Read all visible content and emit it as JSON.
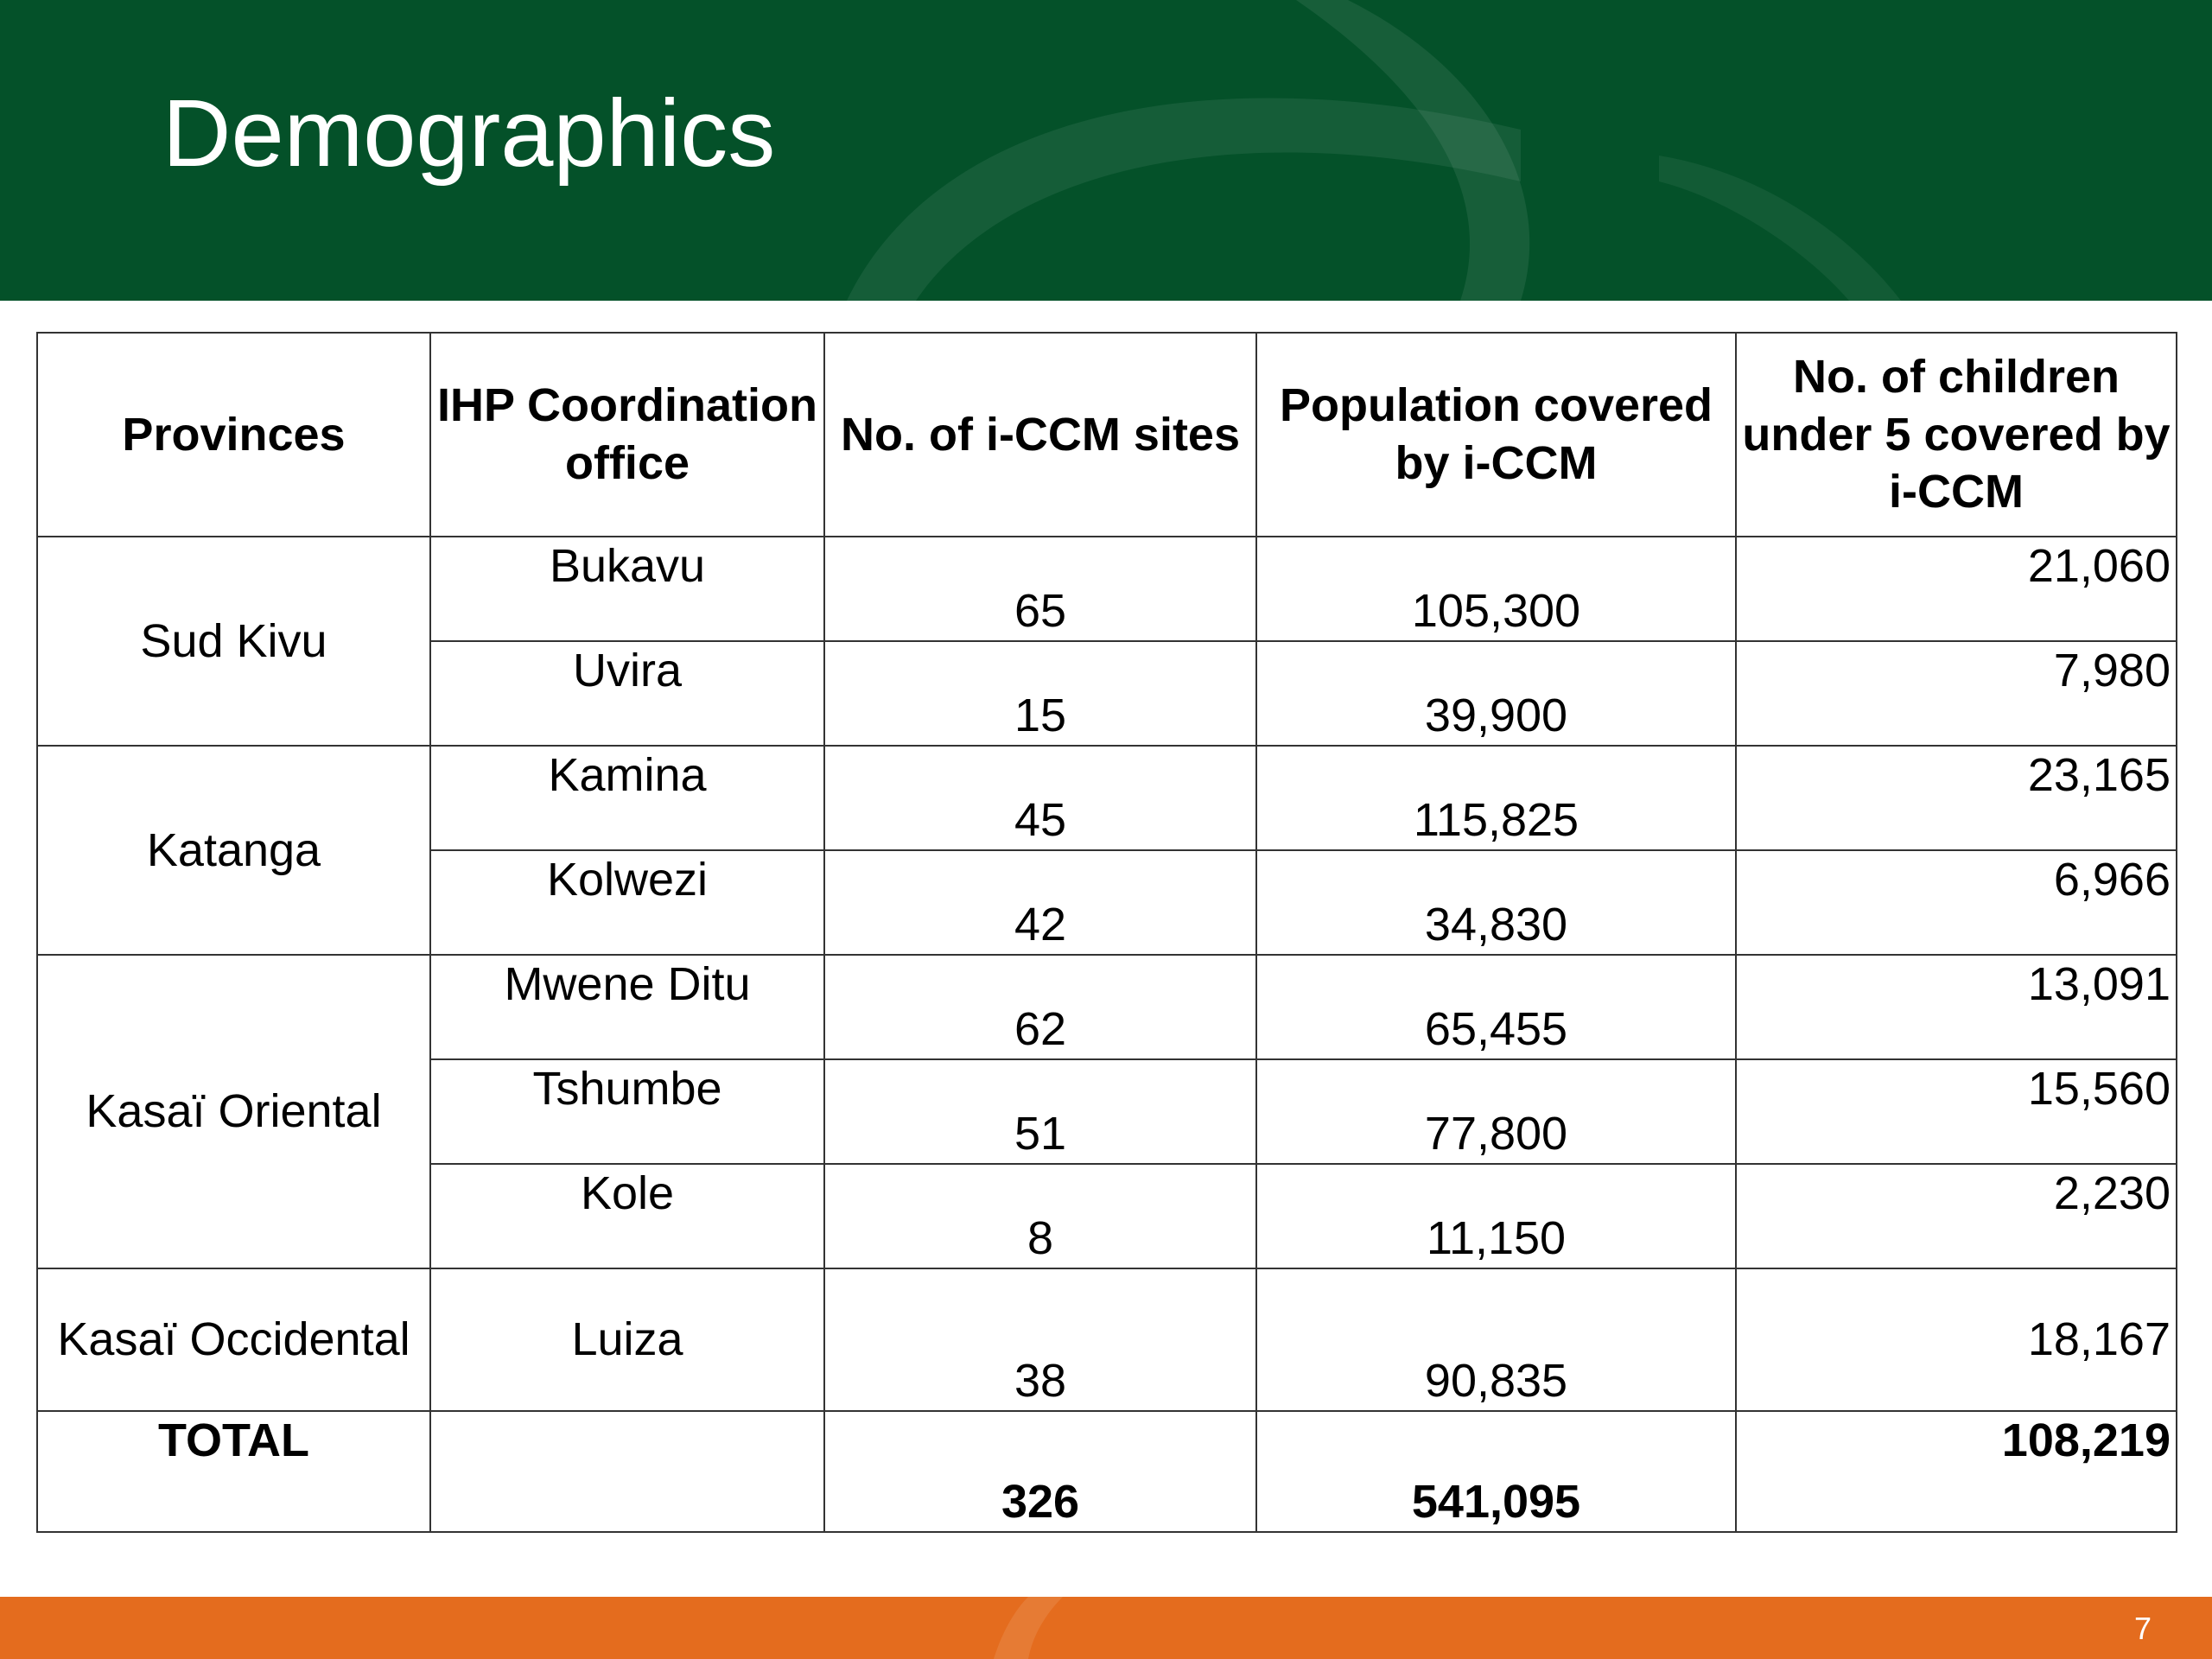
{
  "slide": {
    "title": "Demographics",
    "page_number": "7",
    "colors": {
      "header": "#045129",
      "footer": "#e46c1e",
      "text": "#000000"
    }
  },
  "table": {
    "headers": {
      "provinces": "Provinces",
      "office": "IHP Coordination office",
      "sites": "No. of i-CCM sites",
      "population": "Population covered by i-CCM",
      "children": "No. of children under 5 covered by i-CCM"
    },
    "groups": [
      {
        "province": "Sud Kivu",
        "rows": [
          {
            "office": "Bukavu",
            "sites": "65",
            "population": "105,300",
            "children": "21,060"
          },
          {
            "office": "Uvira",
            "sites": "15",
            "population": "39,900",
            "children": "7,980"
          }
        ]
      },
      {
        "province": "Katanga",
        "rows": [
          {
            "office": "Kamina",
            "sites": "45",
            "population": "115,825",
            "children": "23,165"
          },
          {
            "office": "Kolwezi",
            "sites": "42",
            "population": "34,830",
            "children": "6,966"
          }
        ]
      },
      {
        "province": "Kasaï Oriental",
        "rows": [
          {
            "office": "Mwene Ditu",
            "sites": "62",
            "population": "65,455",
            "children": "13,091"
          },
          {
            "office": "Tshumbe",
            "sites": "51",
            "population": "77,800",
            "children": "15,560"
          },
          {
            "office": "Kole",
            "sites": "8",
            "population": "11,150",
            "children": "2,230"
          }
        ]
      },
      {
        "province": "Kasaï Occidental",
        "rows": [
          {
            "office": "Luiza",
            "sites": "38",
            "population": "90,835",
            "children": "18,167"
          }
        ]
      }
    ],
    "total": {
      "label": "TOTAL",
      "office": "",
      "sites": "326",
      "population": "541,095",
      "children": "108,219"
    }
  }
}
